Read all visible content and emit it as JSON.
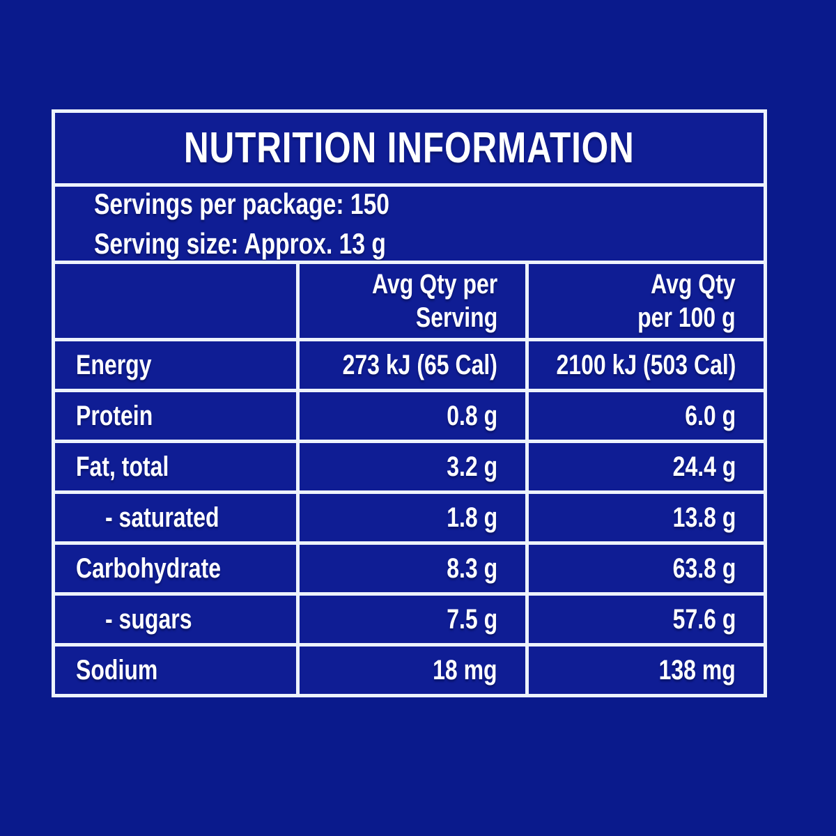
{
  "colors": {
    "page_bg": "#0A1A8C",
    "cell_bg": "#0F1D94",
    "grid_line": "#EDF3FC",
    "text": "#FFFFFF"
  },
  "table": {
    "title": "NUTRITION INFORMATION",
    "serving_info": {
      "servings_per_package": "Servings per package: 150",
      "serving_size": "Serving size: Approx. 13 g"
    },
    "header": {
      "col2_line1": "Avg Qty per",
      "col2_line2": "Serving",
      "col3_line1": "Avg Qty",
      "col3_line2": "per 100 g"
    },
    "rows": [
      {
        "label": "Energy",
        "per_serving": "273 kJ (65 Cal)",
        "per_100g": "2100 kJ (503 Cal)",
        "indent": false
      },
      {
        "label": "Protein",
        "per_serving": "0.8 g",
        "per_100g": "6.0 g",
        "indent": false
      },
      {
        "label": "Fat, total",
        "per_serving": "3.2 g",
        "per_100g": "24.4 g",
        "indent": false
      },
      {
        "label": "- saturated",
        "per_serving": "1.8 g",
        "per_100g": "13.8 g",
        "indent": true
      },
      {
        "label": "Carbohydrate",
        "per_serving": "8.3 g",
        "per_100g": "63.8 g",
        "indent": false
      },
      {
        "label": "- sugars",
        "per_serving": "7.5 g",
        "per_100g": "57.6 g",
        "indent": true
      },
      {
        "label": "Sodium",
        "per_serving": "18 mg",
        "per_100g": "138 mg",
        "indent": false
      }
    ]
  }
}
